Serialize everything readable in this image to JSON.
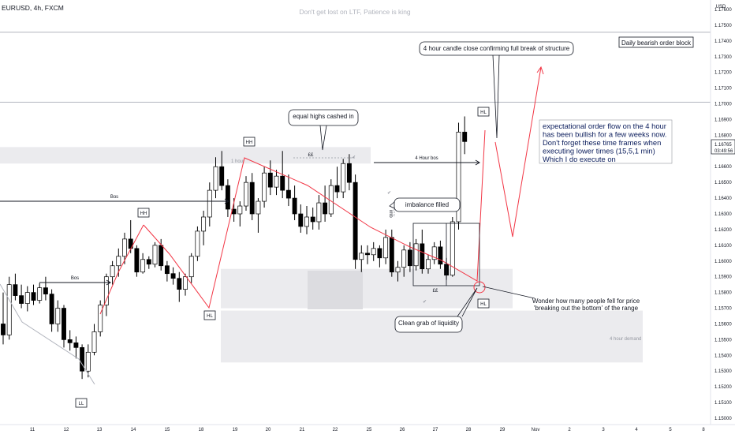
{
  "header": {
    "symbol": "EURUSD, 4h, FXCM",
    "watermark": "Don't get lost on LTF, Patience is king"
  },
  "colors": {
    "up_fill": "#ffffff",
    "down_fill": "#000000",
    "wick": "#000000",
    "zone": "#ebebee",
    "zone_dark": "#dcdce0",
    "annotation_line": "#f23645",
    "label_border": "#131722",
    "hline": "#b2b5be",
    "price_tag": "#ffffff"
  },
  "axis": {
    "currency": "USD",
    "price_ticks": [
      "1.17600",
      "1.17500",
      "1.17400",
      "1.17300",
      "1.17200",
      "1.17100",
      "1.17000",
      "1.16900",
      "1.16800",
      "1.16700",
      "1.16600",
      "1.16500",
      "1.16400",
      "1.16300",
      "1.16200",
      "1.16100",
      "1.16000",
      "1.15900",
      "1.15800",
      "1.15700",
      "1.15600",
      "1.15500",
      "1.15400",
      "1.15300",
      "1.15200",
      "1.15100",
      "1.15000"
    ],
    "last_price": "1.16765",
    "countdown": "03:49:56",
    "date_ticks": [
      "11",
      "12",
      "13",
      "14",
      "15",
      "18",
      "19",
      "20",
      "21",
      "22",
      "25",
      "26",
      "27",
      "28",
      "29",
      "Nov",
      "2",
      "3",
      "4",
      "5",
      "8"
    ]
  },
  "chart_data": {
    "type": "candlestick",
    "symbol": "EURUSD",
    "timeframe": "4h",
    "ylim": [
      1.1495,
      1.1765
    ],
    "candles": [
      [
        1.156,
        1.158,
        1.1547,
        1.1553
      ],
      [
        1.1553,
        1.159,
        1.155,
        1.1585
      ],
      [
        1.1585,
        1.1592,
        1.1575,
        1.1578
      ],
      [
        1.1578,
        1.1585,
        1.157,
        1.1573
      ],
      [
        1.1573,
        1.1584,
        1.1568,
        1.158
      ],
      [
        1.158,
        1.1585,
        1.1572,
        1.1575
      ],
      [
        1.1575,
        1.1586,
        1.1573,
        1.1583
      ],
      [
        1.1583,
        1.159,
        1.1575,
        1.1579
      ],
      [
        1.1579,
        1.1582,
        1.1555,
        1.156
      ],
      [
        1.156,
        1.1575,
        1.1555,
        1.157
      ],
      [
        1.157,
        1.1572,
        1.1545,
        1.155
      ],
      [
        1.155,
        1.1556,
        1.1543,
        1.1548
      ],
      [
        1.1548,
        1.1552,
        1.1538,
        1.1545
      ],
      [
        1.1545,
        1.1547,
        1.1525,
        1.153
      ],
      [
        1.153,
        1.1547,
        1.1526,
        1.1542
      ],
      [
        1.1542,
        1.156,
        1.154,
        1.1555
      ],
      [
        1.1555,
        1.1575,
        1.1552,
        1.1572
      ],
      [
        1.1572,
        1.1592,
        1.1565,
        1.159
      ],
      [
        1.159,
        1.16,
        1.1585,
        1.1597
      ],
      [
        1.1597,
        1.1608,
        1.159,
        1.1603
      ],
      [
        1.1603,
        1.1618,
        1.1598,
        1.1614
      ],
      [
        1.1614,
        1.1626,
        1.1605,
        1.1608
      ],
      [
        1.1608,
        1.161,
        1.159,
        1.1593
      ],
      [
        1.1593,
        1.1605,
        1.1592,
        1.1601
      ],
      [
        1.1601,
        1.1603,
        1.1595,
        1.1598
      ],
      [
        1.1598,
        1.1612,
        1.1596,
        1.161
      ],
      [
        1.161,
        1.1614,
        1.1594,
        1.1597
      ],
      [
        1.1597,
        1.16,
        1.1587,
        1.1592
      ],
      [
        1.1592,
        1.1596,
        1.1585,
        1.1589
      ],
      [
        1.1589,
        1.1593,
        1.1574,
        1.1582
      ],
      [
        1.1582,
        1.1592,
        1.1578,
        1.159
      ],
      [
        1.159,
        1.1605,
        1.1586,
        1.1603
      ],
      [
        1.1603,
        1.1622,
        1.16,
        1.1619
      ],
      [
        1.1619,
        1.1632,
        1.161,
        1.1628
      ],
      [
        1.1628,
        1.165,
        1.1622,
        1.1645
      ],
      [
        1.1645,
        1.1666,
        1.164,
        1.166
      ],
      [
        1.166,
        1.167,
        1.1645,
        1.1648
      ],
      [
        1.1648,
        1.1652,
        1.1628,
        1.1633
      ],
      [
        1.1633,
        1.164,
        1.1625,
        1.163
      ],
      [
        1.163,
        1.1638,
        1.1622,
        1.1635
      ],
      [
        1.1635,
        1.1654,
        1.1632,
        1.165
      ],
      [
        1.165,
        1.1656,
        1.1626,
        1.163
      ],
      [
        1.163,
        1.164,
        1.1618,
        1.1638
      ],
      [
        1.1638,
        1.166,
        1.1634,
        1.1656
      ],
      [
        1.1656,
        1.1664,
        1.1642,
        1.1647
      ],
      [
        1.1647,
        1.1658,
        1.1642,
        1.1654
      ],
      [
        1.1654,
        1.167,
        1.164,
        1.1645
      ],
      [
        1.1645,
        1.1655,
        1.1635,
        1.164
      ],
      [
        1.164,
        1.1648,
        1.1626,
        1.163
      ],
      [
        1.163,
        1.1636,
        1.1618,
        1.1622
      ],
      [
        1.1622,
        1.1635,
        1.1617,
        1.1628
      ],
      [
        1.1628,
        1.1634,
        1.162,
        1.1625
      ],
      [
        1.1625,
        1.1642,
        1.162,
        1.1637
      ],
      [
        1.1637,
        1.1648,
        1.1625,
        1.163
      ],
      [
        1.163,
        1.1652,
        1.1628,
        1.1648
      ],
      [
        1.1648,
        1.166,
        1.164,
        1.1644
      ],
      [
        1.1644,
        1.1665,
        1.164,
        1.1662
      ],
      [
        1.1662,
        1.1668,
        1.1645,
        1.165
      ],
      [
        1.165,
        1.1655,
        1.1595,
        1.1601
      ],
      [
        1.1601,
        1.161,
        1.1593,
        1.1605
      ],
      [
        1.1605,
        1.161,
        1.1598,
        1.1604
      ],
      [
        1.1604,
        1.1612,
        1.16,
        1.1608
      ],
      [
        1.1608,
        1.161,
        1.1596,
        1.1602
      ],
      [
        1.1602,
        1.162,
        1.1598,
        1.1615
      ],
      [
        1.1615,
        1.162,
        1.159,
        1.1593
      ],
      [
        1.1593,
        1.16,
        1.1587,
        1.1596
      ],
      [
        1.1596,
        1.161,
        1.159,
        1.1607
      ],
      [
        1.1607,
        1.1612,
        1.1593,
        1.1597
      ],
      [
        1.1597,
        1.1614,
        1.1594,
        1.1611
      ],
      [
        1.1611,
        1.162,
        1.1592,
        1.1595
      ],
      [
        1.1595,
        1.1604,
        1.1592,
        1.1601
      ],
      [
        1.1601,
        1.1612,
        1.1598,
        1.1609
      ],
      [
        1.1609,
        1.1613,
        1.1595,
        1.1598
      ],
      [
        1.1598,
        1.1602,
        1.1588,
        1.1591
      ],
      [
        1.1591,
        1.1628,
        1.159,
        1.1625
      ],
      [
        1.1625,
        1.1688,
        1.162,
        1.1682
      ],
      [
        1.1682,
        1.1692,
        1.1668,
        1.1676
      ]
    ],
    "zones": [
      {
        "label": "1 hour",
        "top": 1.16725,
        "bottom": 1.1662
      },
      {
        "label": "4 hour demand",
        "top": 1.15685,
        "bottom": 1.15355
      },
      {
        "label": "",
        "top": 1.1595,
        "bottom": 1.157
      }
    ],
    "hlines": [
      1.17455,
      1.1701
    ],
    "structure_labels": [
      "HH",
      "HH",
      "HL",
      "LL",
      "HL",
      "HL"
    ],
    "lines": [
      "Bos",
      "Bos",
      "4 Hour bos"
    ],
    "liquidity_marks": [
      "££",
      "££"
    ],
    "imbalance_tag": "imb"
  },
  "annotations": {
    "note_candle": "4 hour candle close confirming full break of structure",
    "note_daily": "Daily bearish order block",
    "note_equal": "equal highs cashed in",
    "note_imbalance": "imbalance filled",
    "note_orderflow": [
      "expectational order flow on the 4 hour",
      "has been bullish for a few weeks now.",
      "Don't forget these time frames when",
      "executing lower times (15,5,1 min)",
      "Which I do execute on"
    ],
    "note_grab": "Clean grab of liquidity",
    "note_wonder": [
      "Wonder how many people fell for price",
      "'breaking out the bottom' of the range"
    ]
  }
}
